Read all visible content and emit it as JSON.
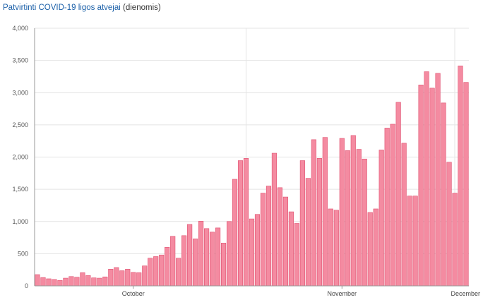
{
  "header": {
    "title": "Patvirtinti COVID-19 ligos atvejai",
    "title_suffix": "(dienomis)"
  },
  "chart_data": {
    "type": "bar",
    "title": "Patvirtinti COVID-19 ligos atvejai (dienomis)",
    "xlabel": "",
    "ylabel": "",
    "ylim": [
      0,
      4000
    ],
    "yticks": [
      0,
      500,
      1000,
      1500,
      2000,
      2500,
      3000,
      3500,
      4000
    ],
    "ytick_labels": [
      "0",
      "500",
      "1,000",
      "1,500",
      "2,000",
      "2,500",
      "3,000",
      "3,500",
      "4,000"
    ],
    "x_labels": [
      {
        "label": "October",
        "index": 17
      },
      {
        "label": "November",
        "index": 54
      },
      {
        "label": "December",
        "index": 90
      }
    ],
    "vertical_grid_at_index": [
      37.5,
      74.5
    ],
    "grid": true,
    "bar_color": "#f48ba1",
    "bar_edge_color": "#e0506f",
    "values": [
      175,
      130,
      110,
      100,
      85,
      120,
      145,
      135,
      205,
      160,
      125,
      120,
      140,
      260,
      285,
      235,
      260,
      210,
      205,
      310,
      430,
      455,
      480,
      600,
      770,
      430,
      780,
      955,
      730,
      1005,
      890,
      835,
      900,
      665,
      1000,
      1655,
      1945,
      1980,
      1040,
      1110,
      1440,
      1550,
      2060,
      1525,
      1380,
      1150,
      970,
      1945,
      1670,
      2270,
      1980,
      2305,
      1195,
      1175,
      2290,
      2100,
      2335,
      2120,
      1970,
      1140,
      1195,
      2110,
      2450,
      2510,
      2850,
      2215,
      1395,
      1395,
      3120,
      3325,
      3070,
      3300,
      2840,
      1920,
      1440,
      3415,
      3160
    ]
  }
}
